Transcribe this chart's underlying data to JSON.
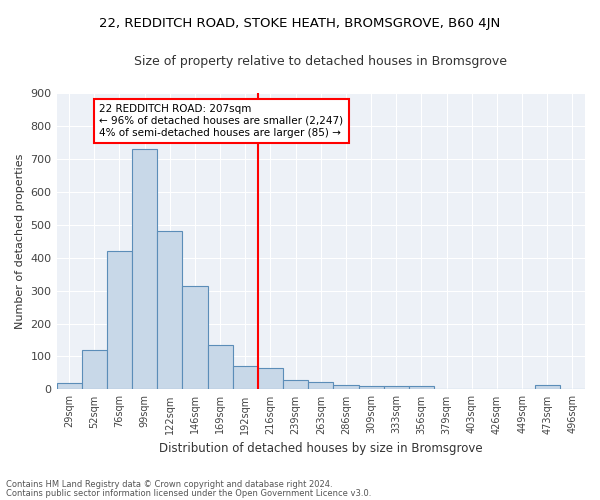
{
  "title1": "22, REDDITCH ROAD, STOKE HEATH, BROMSGROVE, B60 4JN",
  "title2": "Size of property relative to detached houses in Bromsgrove",
  "xlabel": "Distribution of detached houses by size in Bromsgrove",
  "ylabel": "Number of detached properties",
  "categories": [
    "29sqm",
    "52sqm",
    "76sqm",
    "99sqm",
    "122sqm",
    "146sqm",
    "169sqm",
    "192sqm",
    "216sqm",
    "239sqm",
    "263sqm",
    "286sqm",
    "309sqm",
    "333sqm",
    "356sqm",
    "379sqm",
    "403sqm",
    "426sqm",
    "449sqm",
    "473sqm",
    "496sqm"
  ],
  "values": [
    20,
    120,
    420,
    730,
    480,
    315,
    135,
    70,
    65,
    30,
    22,
    12,
    10,
    10,
    10,
    0,
    0,
    0,
    0,
    12,
    0
  ],
  "bar_color": "#c8d8e8",
  "bar_edge_color": "#5b8db8",
  "annotation_title": "22 REDDITCH ROAD: 207sqm",
  "annotation_line1": "← 96% of detached houses are smaller (2,247)",
  "annotation_line2": "4% of semi-detached houses are larger (85) →",
  "footer1": "Contains HM Land Registry data © Crown copyright and database right 2024.",
  "footer2": "Contains public sector information licensed under the Open Government Licence v3.0.",
  "bg_color": "#edf1f7",
  "ylim": [
    0,
    900
  ],
  "yticks": [
    0,
    100,
    200,
    300,
    400,
    500,
    600,
    700,
    800,
    900
  ],
  "red_line_x": 7.5
}
